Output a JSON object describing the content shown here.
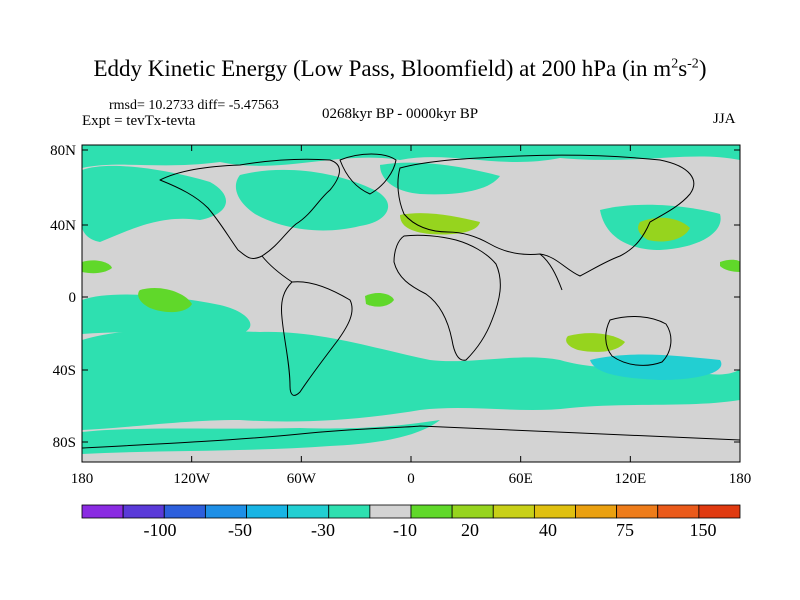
{
  "title": {
    "text": "Eddy Kinetic Energy (Low Pass, Bloomfield) at 200 hPa (in m",
    "exp1": "2",
    "mid": "s",
    "exp2": "-2",
    "end": ")"
  },
  "header": {
    "rmsd": "rmsd= 10.2733 diff= -5.47563",
    "expt": "Expt = tevTx-tevta",
    "period": "0268kyr BP - 0000kyr BP",
    "season": "JJA"
  },
  "axes": {
    "lon_ticks": [
      "180",
      "120W",
      "60W",
      "0",
      "60E",
      "120E",
      "180"
    ],
    "lat_ticks": [
      "80N",
      "40N",
      "0",
      "40S",
      "80S"
    ]
  },
  "colorbar": {
    "colors": [
      "#8a2be2",
      "#5a3ad8",
      "#2d5fdc",
      "#1e8fe6",
      "#18b4e4",
      "#22cfd2",
      "#2ee0b0",
      "#d3d3d3",
      "#60d82a",
      "#96d41e",
      "#c8d018",
      "#e0c010",
      "#eaa010",
      "#ee7c1a",
      "#ea5a1a",
      "#e03a10"
    ],
    "labels": [
      "-100",
      "-50",
      "-30",
      "-10",
      "20",
      "40",
      "75",
      "150"
    ]
  },
  "map_colors": {
    "ocean_neutral": "#d3d3d3",
    "negative_small": "#2ee0b0",
    "negative_medium": "#22cfd2",
    "positive_small": "#60d82a",
    "positive_medium": "#96d41e"
  }
}
